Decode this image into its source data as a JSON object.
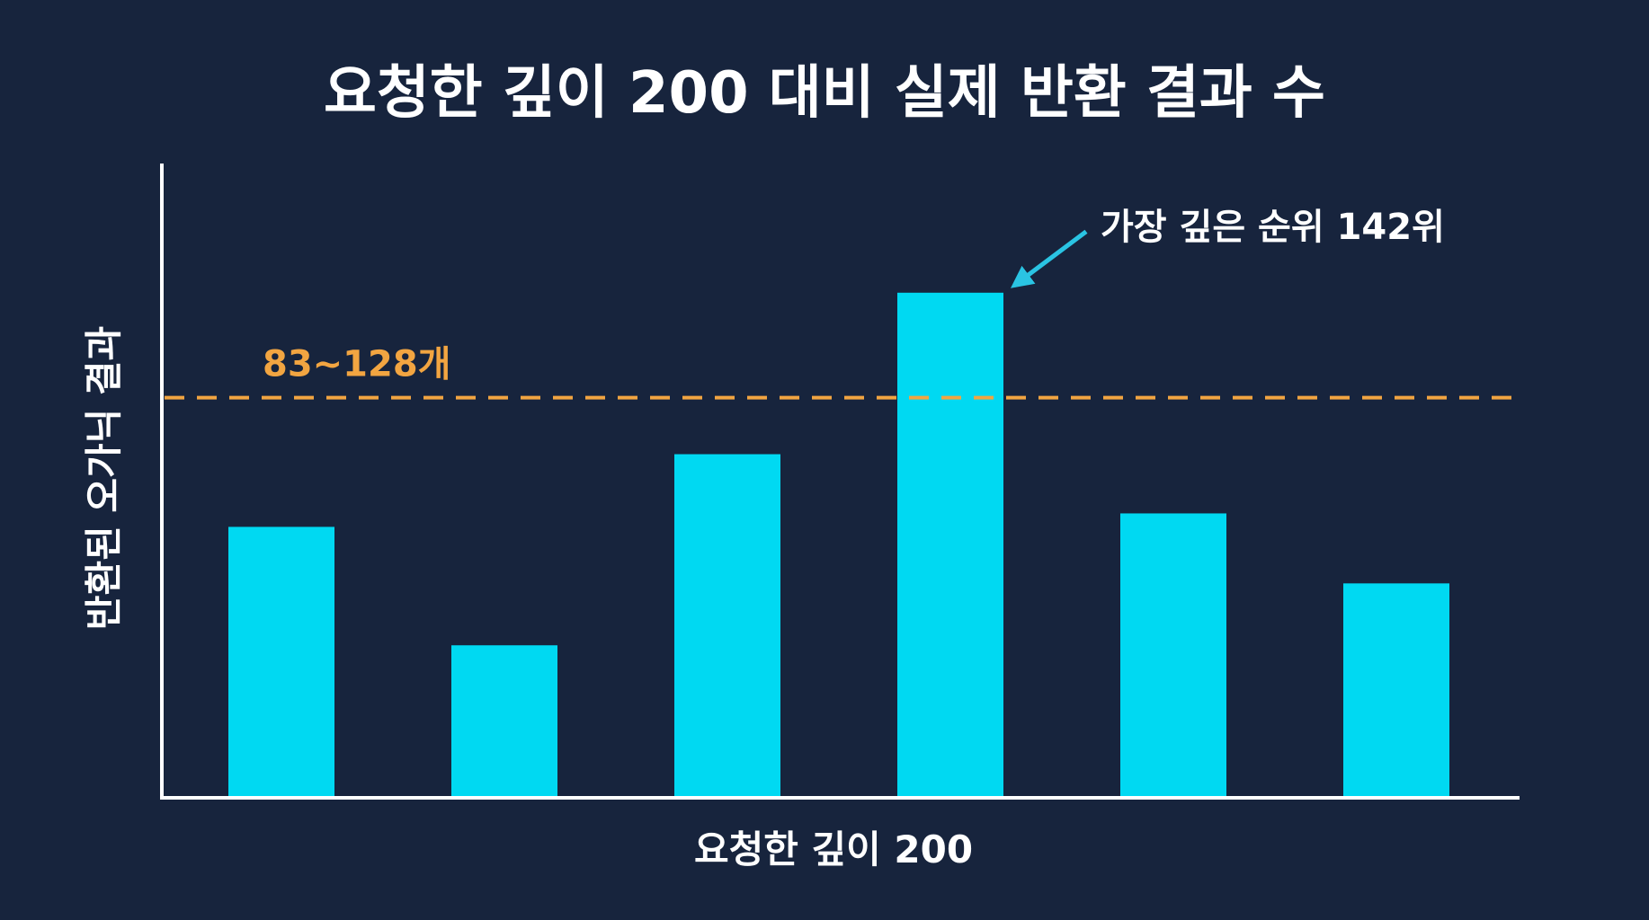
{
  "chart_data": {
    "type": "bar",
    "title": "요청한 깊이 200 대비 실제 반환 결과 수",
    "xlabel": "요청한 깊이 200",
    "ylabel": "반환된 오가닉 결과",
    "categories": [
      "",
      "",
      "",
      "",
      "",
      ""
    ],
    "values": [
      100,
      56,
      127,
      187,
      105,
      79
    ],
    "ylim": [
      0,
      235
    ],
    "grid": false,
    "legend": "none",
    "reference_line": {
      "value": 148,
      "label": "83~128개",
      "style": "dashed"
    },
    "annotations": [
      {
        "text": "가장 깊은 순위 142위",
        "target_index": 3,
        "arrow": true
      }
    ]
  },
  "colors": {
    "background": "#17243d",
    "bar": "#00d9f2",
    "reference_line": "#f2a541",
    "arrow": "#2ac4e3",
    "axis": "#ffffff",
    "text": "#ffffff"
  }
}
